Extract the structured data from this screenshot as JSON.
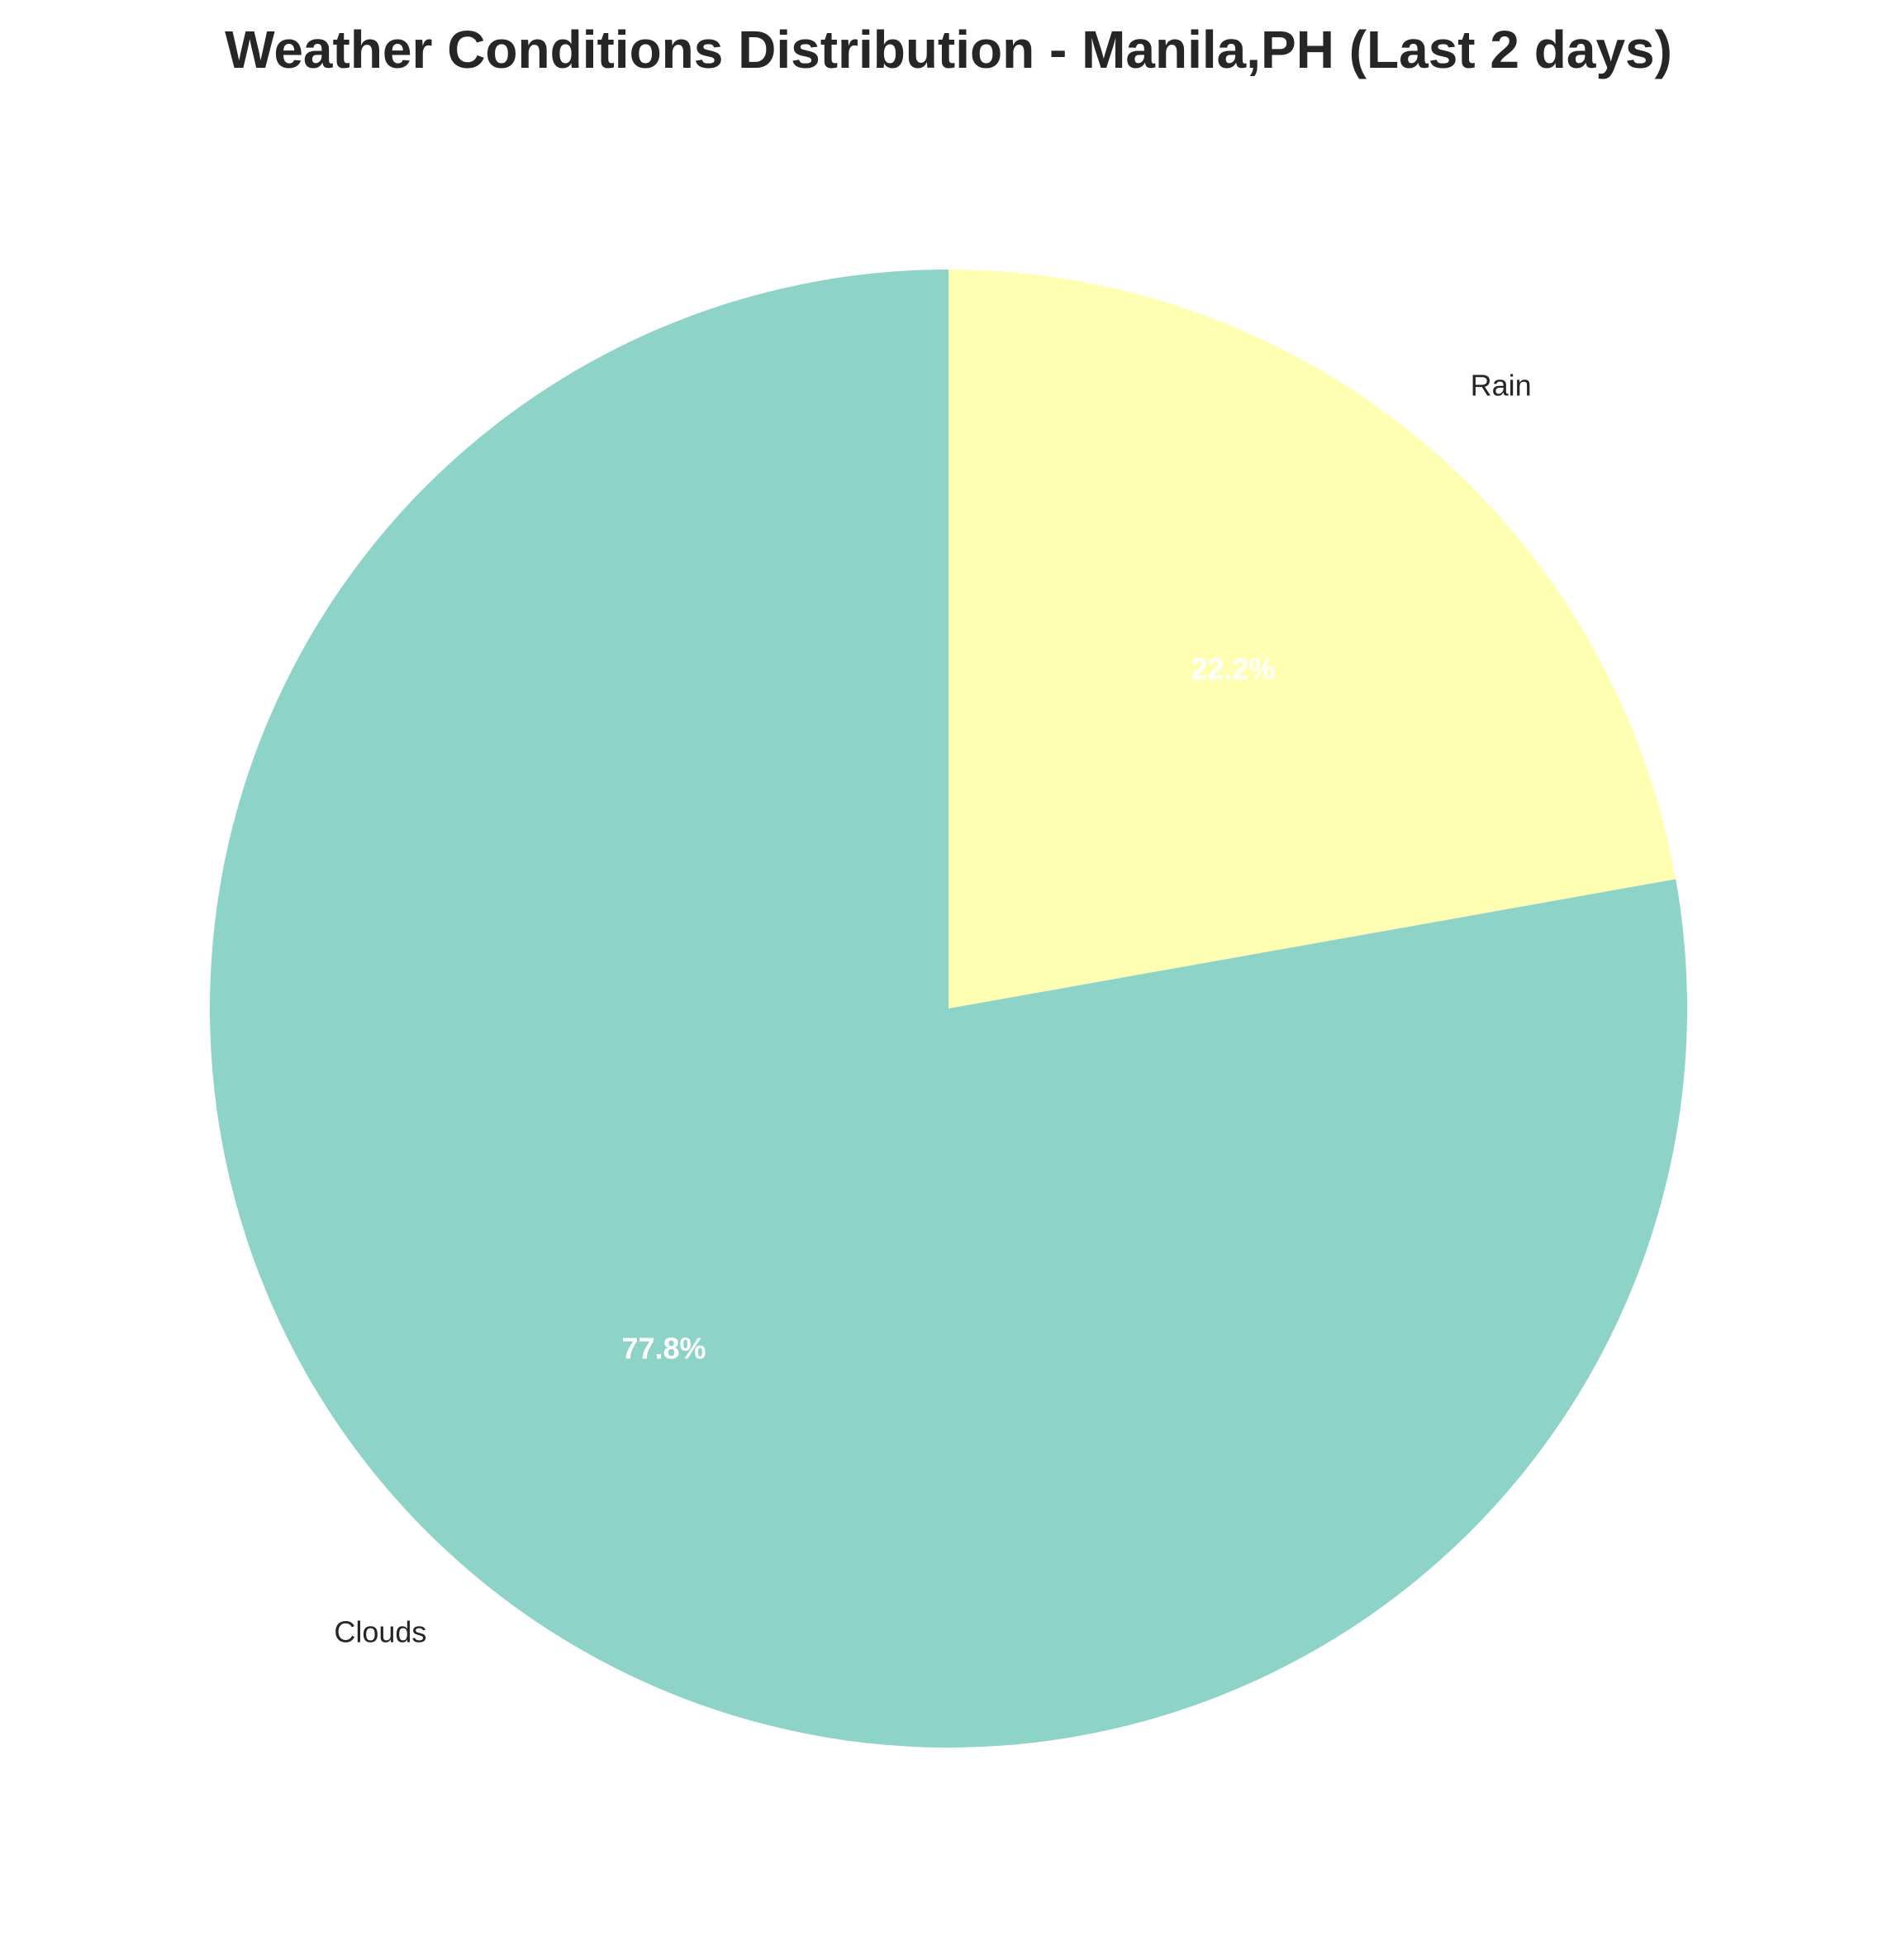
{
  "chart_data": {
    "type": "pie",
    "title": "Weather Conditions Distribution - Manila,PH (Last 2 days)",
    "categories": [
      "Rain",
      "Clouds"
    ],
    "values": [
      22.2,
      77.8
    ],
    "value_labels": [
      "22.2%",
      "77.8%"
    ],
    "colors": [
      "#ffffb3",
      "#8dd3c7"
    ],
    "start_angle_deg": 90,
    "direction": "clockwise",
    "legend": "none"
  }
}
